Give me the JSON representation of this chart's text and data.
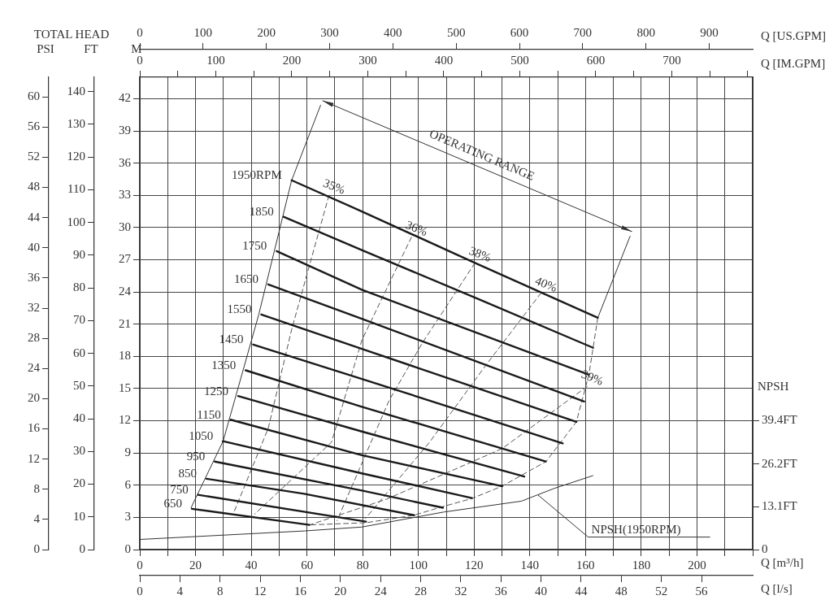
{
  "chart_data": [
    {
      "type": "line",
      "xlabel": "Q [m³/h]",
      "ylabel": "M",
      "x2label": "Q [l/s]",
      "y2label": "FT",
      "y3label": "PSI",
      "annotations": [
        "TOTAL HEAD",
        "OPERATING RANGE"
      ],
      "xlim": [
        0,
        220
      ],
      "xticks": [
        0,
        {
          "value": 10,
          "label": null
        },
        20,
        {
          "value": 30,
          "label": null
        },
        40,
        {
          "value": 50,
          "label": null
        },
        60,
        {
          "value": 70,
          "label": null
        },
        80,
        {
          "value": 90,
          "label": null
        },
        100,
        {
          "value": 110,
          "label": null
        },
        120,
        {
          "value": 130,
          "label": null
        },
        140,
        {
          "value": 150,
          "label": null
        },
        160,
        {
          "value": 170,
          "label": null
        },
        180,
        {
          "value": 190,
          "label": null
        },
        200,
        {
          "value": 210,
          "label": null
        },
        {
          "value": 220,
          "label": null
        }
      ],
      "x2lim": [
        0,
        61.1
      ],
      "x2ticks": [
        0,
        4,
        8,
        12,
        16,
        20,
        24,
        28,
        32,
        36,
        40,
        44,
        48,
        52,
        56
      ],
      "ylim": [
        0,
        44
      ],
      "yticks": [
        0,
        3,
        6,
        9,
        12,
        15,
        18,
        21,
        24,
        27,
        30,
        33,
        36,
        39,
        42
      ],
      "y2lim": [
        0,
        144.4
      ],
      "y2ticks": [
        0,
        10,
        20,
        30,
        40,
        50,
        60,
        70,
        80,
        90,
        100,
        110,
        120,
        130,
        140
      ],
      "y3lim": [
        0,
        62.6
      ],
      "y3ticks": [
        0,
        4,
        8,
        12,
        16,
        20,
        24,
        28,
        32,
        36,
        40,
        44,
        48,
        52,
        56,
        60
      ],
      "grid": true,
      "legend": false,
      "marker": "none",
      "series": [
        {
          "name": "1950RPM",
          "color": "#1a1a1a",
          "line_style": "solid",
          "x": [
            54.5,
            79.7,
            120.3,
            164.4
          ],
          "values": [
            34.4,
            31.5,
            26.7,
            21.6
          ]
        },
        {
          "name": "1850",
          "color": "#1a1a1a",
          "line_style": "solid",
          "x": [
            51.6,
            79.7,
            120,
            162.7
          ],
          "values": [
            31.0,
            27.9,
            23.5,
            18.8
          ]
        },
        {
          "name": "1750",
          "color": "#1a1a1a",
          "line_style": "solid",
          "x": [
            49.1,
            79.7,
            161.2
          ],
          "values": [
            27.8,
            24.2,
            16.3
          ]
        },
        {
          "name": "1650",
          "color": "#1a1a1a",
          "line_style": "solid",
          "x": [
            46.1,
            79.7,
            159.5
          ],
          "values": [
            24.7,
            21.5,
            13.8
          ]
        },
        {
          "name": "1550",
          "color": "#1a1a1a",
          "line_style": "solid",
          "x": [
            43.6,
            79.7,
            156.7
          ],
          "values": [
            21.9,
            18.7,
            11.9
          ]
        },
        {
          "name": "1450",
          "color": "#1a1a1a",
          "line_style": "solid",
          "x": [
            40.7,
            79.7,
            151.8
          ],
          "values": [
            19.1,
            15.9,
            9.9
          ]
        },
        {
          "name": "1350",
          "color": "#1a1a1a",
          "line_style": "solid",
          "x": [
            38.0,
            79.7,
            145.7
          ],
          "values": [
            16.7,
            13.3,
            8.2
          ]
        },
        {
          "name": "1250",
          "color": "#1a1a1a",
          "line_style": "solid",
          "x": [
            35.3,
            79.7,
            138.0
          ],
          "values": [
            14.3,
            11.0,
            6.8
          ]
        },
        {
          "name": "1150",
          "color": "#1a1a1a",
          "line_style": "solid",
          "x": [
            32.6,
            79.7,
            130.1
          ],
          "values": [
            12.1,
            8.8,
            5.9
          ]
        },
        {
          "name": "1050",
          "color": "#1a1a1a",
          "line_style": "solid",
          "x": [
            29.8,
            79.7,
            119.2
          ],
          "values": [
            10.1,
            7.1,
            4.8
          ]
        },
        {
          "name": "950",
          "color": "#1a1a1a",
          "line_style": "solid",
          "x": [
            26.9,
            79.7,
            108.8
          ],
          "values": [
            8.2,
            5.5,
            3.9
          ]
        },
        {
          "name": "850",
          "color": "#1a1a1a",
          "line_style": "solid",
          "x": [
            23.9,
            59,
            98.5
          ],
          "values": [
            6.6,
            5.2,
            3.2
          ]
        },
        {
          "name": "750",
          "color": "#1a1a1a",
          "line_style": "solid",
          "x": [
            20.9,
            81.2
          ],
          "values": [
            5.1,
            2.6
          ]
        },
        {
          "name": "650",
          "color": "#1a1a1a",
          "line_style": "solid",
          "x": [
            18.7,
            60.9
          ],
          "values": [
            3.8,
            2.3
          ]
        },
        {
          "name": "35%",
          "color": "#555555",
          "line_style": "dashed",
          "x": [
            67.9,
            54.5,
            46.1,
            33.8
          ],
          "values": [
            33.0,
            20.5,
            11.3,
            3.5
          ]
        },
        {
          "name": "36%",
          "color": "#555555",
          "line_style": "dashed",
          "x": [
            97.5,
            79.7,
            68.8,
            41.2
          ],
          "values": [
            29.1,
            19.5,
            10.0,
            3.3
          ]
        },
        {
          "name": "38%",
          "color": "#555555",
          "line_style": "dashed",
          "x": [
            120.3,
            101.3,
            89.5,
            70.8
          ],
          "values": [
            26.7,
            19.2,
            13.9,
            2.7
          ]
        },
        {
          "name": "40%",
          "color": "#555555",
          "line_style": "dashed",
          "x": [
            144,
            124,
            104,
            81
          ],
          "values": [
            23.9,
            17.1,
            10,
            2.9
          ]
        },
        {
          "name": "39%",
          "color": "#555555",
          "line_style": "dashed",
          "x": [
            160.6,
            130,
            88.6,
            61
          ],
          "values": [
            15.2,
            9.4,
            4.7,
            2.3
          ]
        },
        {
          "color": "#333333",
          "line_style": "solid",
          "x": [
            64.9,
            54.5,
            42.7,
            29.9,
            18.4
          ],
          "values": [
            41.4,
            34.4,
            21.9,
            10.1,
            3.9
          ]
        },
        {
          "color": "#333333",
          "line_style": "solid",
          "x": [
            176,
            164.4
          ],
          "values": [
            29.2,
            21.6
          ]
        },
        {
          "color": "#555555",
          "line_style": "dashed",
          "x": [
            164.4,
            161.2,
            156.7,
            145.8,
            130,
            119.1,
            108.7,
            98.4,
            81.2,
            60.7
          ],
          "values": [
            21.6,
            16.3,
            11.9,
            8.2,
            5.9,
            4.75,
            4.0,
            3.2,
            2.5,
            2.3
          ]
        }
      ]
    },
    {
      "type": "line",
      "xlabel": "Q [US.GPM]",
      "x2label": "Q [IM.GPM]",
      "ylabel": "NPSH",
      "xlim": [
        0,
        968.7
      ],
      "xticks": [
        0,
        100,
        200,
        300,
        400,
        500,
        600,
        700,
        800,
        900
      ],
      "x2lim": [
        0,
        806.5
      ],
      "x2ticks": [
        0,
        {
          "value": 50,
          "label": null
        },
        100,
        {
          "value": 150,
          "label": null
        },
        200,
        {
          "value": 250,
          "label": null
        },
        300,
        {
          "value": 350,
          "label": null
        },
        400,
        {
          "value": 450,
          "label": null
        },
        500,
        {
          "value": 550,
          "label": null
        },
        600,
        {
          "value": 650,
          "label": null
        },
        700,
        {
          "value": 750,
          "label": null
        },
        {
          "value": 800,
          "label": null
        }
      ],
      "ylim": [
        0,
        144.4
      ],
      "yticks": [
        0,
        {
          "value": 13.1,
          "label": "13.1FT"
        },
        {
          "value": 26.2,
          "label": "26.2FT"
        },
        {
          "value": 39.4,
          "label": "39.4FT"
        }
      ],
      "series": [
        {
          "name": "NPSH(1950RPM)",
          "color": "#333333",
          "line_style": "solid",
          "x": [
            0,
            260,
            351,
            481,
            603,
            655,
            716
          ],
          "values": [
            3.1,
            5.7,
            6.9,
            11.5,
            14.8,
            18.7,
            22.6
          ]
        }
      ]
    }
  ]
}
